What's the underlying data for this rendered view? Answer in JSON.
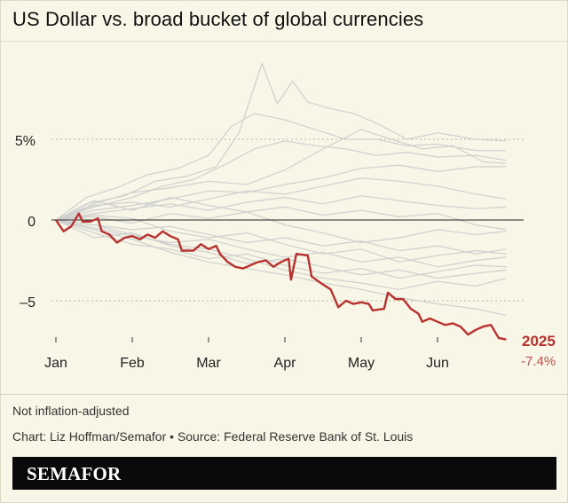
{
  "title": "US Dollar vs. broad bucket of global currencies",
  "note": "Not inflation-adjusted",
  "credit": "Chart: Liz Hoffman/Semafor • Source: Federal Reserve Bank of St. Louis",
  "brand": "SEMAFOR",
  "highlight": {
    "label": "2025",
    "value": "-7.4%"
  },
  "colors": {
    "background": "#f8f6e6",
    "highlight": "#b8312f",
    "history": "#cfcfcf",
    "zero_line": "#222222",
    "brand_bar": "#0a0a0a"
  },
  "chart_data": {
    "type": "line",
    "title": "US Dollar vs. broad bucket of global currencies",
    "x_unit": "month",
    "xlim": [
      0,
      6.2
    ],
    "ylim": [
      -7.5,
      9.5
    ],
    "x_tick_labels": [
      "Jan",
      "Feb",
      "Mar",
      "Apr",
      "May",
      "Jun"
    ],
    "x_tick_values": [
      0,
      1,
      2,
      3,
      4,
      5
    ],
    "y_tick_labels": [
      "5%",
      "0",
      "–5"
    ],
    "y_tick_values": [
      5,
      0,
      -5
    ],
    "grid": "dotted horizontal",
    "highlight_series": {
      "name": "2025",
      "end_label": "-7.4%",
      "points": [
        [
          0,
          0
        ],
        [
          0.1,
          -0.7
        ],
        [
          0.2,
          -0.4
        ],
        [
          0.3,
          0.4
        ],
        [
          0.35,
          -0.1
        ],
        [
          0.45,
          -0.1
        ],
        [
          0.55,
          0.1
        ],
        [
          0.6,
          -0.7
        ],
        [
          0.7,
          -0.9
        ],
        [
          0.8,
          -1.4
        ],
        [
          0.9,
          -1.1
        ],
        [
          1.0,
          -1.0
        ],
        [
          1.1,
          -1.2
        ],
        [
          1.2,
          -0.9
        ],
        [
          1.3,
          -1.1
        ],
        [
          1.4,
          -0.7
        ],
        [
          1.5,
          -1.0
        ],
        [
          1.6,
          -1.2
        ],
        [
          1.65,
          -1.9
        ],
        [
          1.8,
          -1.9
        ],
        [
          1.9,
          -1.5
        ],
        [
          2.0,
          -1.8
        ],
        [
          2.1,
          -1.6
        ],
        [
          2.15,
          -2.1
        ],
        [
          2.25,
          -2.6
        ],
        [
          2.35,
          -2.9
        ],
        [
          2.45,
          -3.0
        ],
        [
          2.55,
          -2.8
        ],
        [
          2.65,
          -2.6
        ],
        [
          2.75,
          -2.5
        ],
        [
          2.85,
          -2.9
        ],
        [
          2.95,
          -2.6
        ],
        [
          3.05,
          -2.4
        ],
        [
          3.08,
          -3.7
        ],
        [
          3.15,
          -2.1
        ],
        [
          3.3,
          -2.2
        ],
        [
          3.35,
          -3.5
        ],
        [
          3.5,
          -4.0
        ],
        [
          3.6,
          -4.3
        ],
        [
          3.7,
          -5.4
        ],
        [
          3.8,
          -5.0
        ],
        [
          3.9,
          -5.2
        ],
        [
          4.0,
          -5.1
        ],
        [
          4.1,
          -5.2
        ],
        [
          4.15,
          -5.6
        ],
        [
          4.3,
          -5.5
        ],
        [
          4.35,
          -4.5
        ],
        [
          4.45,
          -4.9
        ],
        [
          4.55,
          -4.9
        ],
        [
          4.65,
          -5.5
        ],
        [
          4.75,
          -5.8
        ],
        [
          4.8,
          -6.3
        ],
        [
          4.9,
          -6.1
        ],
        [
          5.0,
          -6.3
        ],
        [
          5.1,
          -6.5
        ],
        [
          5.2,
          -6.4
        ],
        [
          5.3,
          -6.6
        ],
        [
          5.4,
          -7.1
        ],
        [
          5.5,
          -6.8
        ],
        [
          5.6,
          -6.6
        ],
        [
          5.7,
          -6.5
        ],
        [
          5.8,
          -7.3
        ],
        [
          5.9,
          -7.4
        ]
      ]
    },
    "history_series": [
      {
        "points": [
          [
            0,
            0
          ],
          [
            0.4,
            1.0
          ],
          [
            0.9,
            1.5
          ],
          [
            1.3,
            2.4
          ],
          [
            1.7,
            2.7
          ],
          [
            2.1,
            3.3
          ],
          [
            2.4,
            5.4
          ],
          [
            2.7,
            9.7
          ],
          [
            2.9,
            7.2
          ],
          [
            3.1,
            8.6
          ],
          [
            3.3,
            7.3
          ],
          [
            3.6,
            6.9
          ],
          [
            3.9,
            6.6
          ],
          [
            4.2,
            6.0
          ],
          [
            4.6,
            5.0
          ],
          [
            5.0,
            5.4
          ],
          [
            5.5,
            5.0
          ],
          [
            5.9,
            4.9
          ]
        ]
      },
      {
        "points": [
          [
            0,
            0
          ],
          [
            0.4,
            1.4
          ],
          [
            0.8,
            2.0
          ],
          [
            1.2,
            2.8
          ],
          [
            1.6,
            3.2
          ],
          [
            2.0,
            4.0
          ],
          [
            2.3,
            5.8
          ],
          [
            2.6,
            6.6
          ],
          [
            3.0,
            6.2
          ],
          [
            3.4,
            5.6
          ],
          [
            3.8,
            5.0
          ],
          [
            4.2,
            5.0
          ],
          [
            4.6,
            4.6
          ],
          [
            5.0,
            4.7
          ],
          [
            5.5,
            4.3
          ],
          [
            5.9,
            4.3
          ]
        ]
      },
      {
        "points": [
          [
            0,
            0
          ],
          [
            0.5,
            0.8
          ],
          [
            1.0,
            1.4
          ],
          [
            1.4,
            2.1
          ],
          [
            1.8,
            2.5
          ],
          [
            2.2,
            3.4
          ],
          [
            2.6,
            4.4
          ],
          [
            3.0,
            4.9
          ],
          [
            3.4,
            4.6
          ],
          [
            3.8,
            4.4
          ],
          [
            4.2,
            4.0
          ],
          [
            4.6,
            4.2
          ],
          [
            5.0,
            3.9
          ],
          [
            5.5,
            4.0
          ],
          [
            5.9,
            3.7
          ]
        ]
      },
      {
        "points": [
          [
            0,
            0
          ],
          [
            0.5,
            1.0
          ],
          [
            1.0,
            1.7
          ],
          [
            1.5,
            2.0
          ],
          [
            2.0,
            2.4
          ],
          [
            2.5,
            2.2
          ],
          [
            3.0,
            3.1
          ],
          [
            3.5,
            4.4
          ],
          [
            4.0,
            5.6
          ],
          [
            4.4,
            5.0
          ],
          [
            4.8,
            4.4
          ],
          [
            5.2,
            4.6
          ],
          [
            5.6,
            3.6
          ],
          [
            5.9,
            3.5
          ]
        ]
      },
      {
        "points": [
          [
            0,
            0
          ],
          [
            0.5,
            0.6
          ],
          [
            1.0,
            0.9
          ],
          [
            1.5,
            1.3
          ],
          [
            2.0,
            1.8
          ],
          [
            2.5,
            1.7
          ],
          [
            3.0,
            2.2
          ],
          [
            3.5,
            2.6
          ],
          [
            4.0,
            3.2
          ],
          [
            4.5,
            3.4
          ],
          [
            5.0,
            3.0
          ],
          [
            5.5,
            3.3
          ],
          [
            5.9,
            3.3
          ]
        ]
      },
      {
        "points": [
          [
            0,
            0
          ],
          [
            0.5,
            0.9
          ],
          [
            1.0,
            1.1
          ],
          [
            1.5,
            0.8
          ],
          [
            2.0,
            1.3
          ],
          [
            2.5,
            1.8
          ],
          [
            3.0,
            1.6
          ],
          [
            3.5,
            2.1
          ],
          [
            4.0,
            2.6
          ],
          [
            4.5,
            2.4
          ],
          [
            5.0,
            2.1
          ],
          [
            5.5,
            1.6
          ],
          [
            5.9,
            1.3
          ]
        ]
      },
      {
        "points": [
          [
            0,
            0
          ],
          [
            0.5,
            0.4
          ],
          [
            1.0,
            0.7
          ],
          [
            1.5,
            1.0
          ],
          [
            2.0,
            0.6
          ],
          [
            2.5,
            1.1
          ],
          [
            3.0,
            1.4
          ],
          [
            3.5,
            1.0
          ],
          [
            4.0,
            1.5
          ],
          [
            4.5,
            1.2
          ],
          [
            5.0,
            0.9
          ],
          [
            5.5,
            0.7
          ],
          [
            5.9,
            0.8
          ]
        ]
      },
      {
        "points": [
          [
            0,
            0
          ],
          [
            0.5,
            0.2
          ],
          [
            1.0,
            -0.2
          ],
          [
            1.5,
            0.4
          ],
          [
            2.0,
            0.1
          ],
          [
            2.5,
            0.5
          ],
          [
            3.0,
            0.8
          ],
          [
            3.5,
            0.3
          ],
          [
            4.0,
            0.6
          ],
          [
            4.5,
            0.2
          ],
          [
            5.0,
            0.4
          ],
          [
            5.5,
            -0.3
          ],
          [
            5.9,
            -0.6
          ]
        ]
      },
      {
        "points": [
          [
            0,
            0
          ],
          [
            0.5,
            -0.3
          ],
          [
            1.0,
            -0.6
          ],
          [
            1.5,
            -0.4
          ],
          [
            2.0,
            -0.9
          ],
          [
            2.5,
            -1.4
          ],
          [
            3.0,
            -1.1
          ],
          [
            3.5,
            -1.6
          ],
          [
            4.0,
            -1.3
          ],
          [
            4.5,
            -1.9
          ],
          [
            5.0,
            -1.6
          ],
          [
            5.5,
            -2.1
          ],
          [
            5.9,
            -1.8
          ]
        ]
      },
      {
        "points": [
          [
            0,
            0
          ],
          [
            0.5,
            -0.5
          ],
          [
            1.0,
            -1.0
          ],
          [
            1.5,
            -1.4
          ],
          [
            2.0,
            -1.2
          ],
          [
            2.5,
            -1.8
          ],
          [
            3.0,
            -2.3
          ],
          [
            3.5,
            -2.0
          ],
          [
            4.0,
            -2.6
          ],
          [
            4.5,
            -2.3
          ],
          [
            5.0,
            -2.9
          ],
          [
            5.5,
            -2.5
          ],
          [
            5.9,
            -2.3
          ]
        ]
      },
      {
        "points": [
          [
            0,
            0
          ],
          [
            0.5,
            -0.8
          ],
          [
            1.0,
            -1.5
          ],
          [
            1.5,
            -1.8
          ],
          [
            2.0,
            -2.4
          ],
          [
            2.5,
            -2.1
          ],
          [
            3.0,
            -2.8
          ],
          [
            3.5,
            -3.3
          ],
          [
            4.0,
            -3.0
          ],
          [
            4.5,
            -3.6
          ],
          [
            5.0,
            -3.2
          ],
          [
            5.5,
            -2.8
          ],
          [
            5.9,
            -2.9
          ]
        ]
      },
      {
        "points": [
          [
            0,
            0
          ],
          [
            0.5,
            -0.6
          ],
          [
            1.0,
            -1.2
          ],
          [
            1.5,
            -2.0
          ],
          [
            2.0,
            -2.6
          ],
          [
            2.5,
            -3.0
          ],
          [
            3.0,
            -3.4
          ],
          [
            3.5,
            -3.9
          ],
          [
            4.0,
            -4.3
          ],
          [
            4.5,
            -4.8
          ],
          [
            5.0,
            -5.2
          ],
          [
            5.5,
            -5.5
          ],
          [
            5.9,
            -5.9
          ]
        ]
      },
      {
        "points": [
          [
            0,
            0
          ],
          [
            0.5,
            -0.3
          ],
          [
            1.0,
            -0.9
          ],
          [
            1.5,
            -1.5
          ],
          [
            2.0,
            -1.8
          ],
          [
            2.5,
            -2.4
          ],
          [
            3.0,
            -3.1
          ],
          [
            3.5,
            -3.6
          ],
          [
            4.0,
            -3.9
          ],
          [
            4.5,
            -4.3
          ],
          [
            5.0,
            -3.8
          ],
          [
            5.5,
            -4.1
          ],
          [
            5.9,
            -3.6
          ]
        ]
      },
      {
        "points": [
          [
            0,
            0
          ],
          [
            0.5,
            0.3
          ],
          [
            1.0,
            0.1
          ],
          [
            1.5,
            -0.7
          ],
          [
            2.0,
            -1.1
          ],
          [
            2.5,
            -0.8
          ],
          [
            3.0,
            -1.5
          ],
          [
            3.5,
            -2.1
          ],
          [
            4.0,
            -1.8
          ],
          [
            4.5,
            -2.6
          ],
          [
            5.0,
            -2.2
          ],
          [
            5.5,
            -1.9
          ],
          [
            5.9,
            -2.1
          ]
        ]
      },
      {
        "points": [
          [
            0,
            0
          ],
          [
            0.5,
            1.2
          ],
          [
            1.0,
            0.6
          ],
          [
            1.5,
            1.4
          ],
          [
            2.0,
            0.9
          ],
          [
            2.5,
            0.5
          ],
          [
            3.0,
            -0.3
          ],
          [
            3.5,
            -0.8
          ],
          [
            4.0,
            -1.4
          ],
          [
            4.5,
            -1.1
          ],
          [
            5.0,
            -0.6
          ],
          [
            5.5,
            -0.9
          ],
          [
            5.9,
            -0.7
          ]
        ]
      },
      {
        "points": [
          [
            0,
            0
          ],
          [
            0.5,
            -1.1
          ],
          [
            1.0,
            -0.8
          ],
          [
            1.5,
            -1.6
          ],
          [
            2.0,
            -2.0
          ],
          [
            2.5,
            -2.7
          ],
          [
            3.0,
            -2.4
          ],
          [
            3.5,
            -2.9
          ],
          [
            4.0,
            -3.4
          ],
          [
            4.5,
            -3.1
          ],
          [
            5.0,
            -3.6
          ],
          [
            5.5,
            -3.3
          ],
          [
            5.9,
            -3.1
          ]
        ]
      }
    ]
  }
}
